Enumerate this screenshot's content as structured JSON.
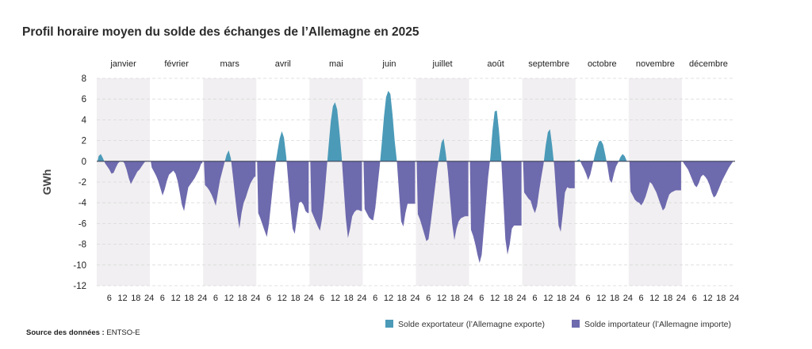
{
  "chart_data": {
    "type": "area",
    "title": "Profil horaire moyen du solde des échanges de l’Allemagne en 2025",
    "ylabel": "GWh",
    "ylim": [
      -12,
      8
    ],
    "yticks": [
      8,
      6,
      4,
      2,
      0,
      -2,
      -4,
      -6,
      -8,
      -10,
      -12
    ],
    "grid": true,
    "hour_ticks": [
      6,
      12,
      18,
      24
    ],
    "months": [
      "janvier",
      "février",
      "mars",
      "avril",
      "mai",
      "juin",
      "juillet",
      "août",
      "septembre",
      "octobre",
      "novembre",
      "décembre"
    ],
    "hourly_values": [
      [
        0.5,
        0.7,
        0.3,
        -0.2,
        -0.5,
        -0.8,
        -1.2,
        -1.1,
        -0.6,
        -0.2,
        0,
        0.05,
        -0.2,
        -0.8,
        -1.6,
        -2.2,
        -1.8,
        -1.4,
        -1.0,
        -0.8,
        -0.5,
        -0.2,
        0.05,
        0
      ],
      [
        -0.6,
        -1.0,
        -1.4,
        -1.9,
        -2.6,
        -3.3,
        -2.7,
        -1.9,
        -1.3,
        -1.1,
        -0.9,
        -1.2,
        -1.9,
        -3.0,
        -4.2,
        -4.8,
        -3.6,
        -2.5,
        -2.2,
        -1.9,
        -1.6,
        -1.2,
        -0.8,
        -0.2
      ],
      [
        -2.3,
        -2.5,
        -2.8,
        -3.2,
        -3.7,
        -4.3,
        -3.0,
        -1.8,
        -1.0,
        -0.2,
        0.6,
        1.05,
        0.3,
        -1.5,
        -3.4,
        -5.2,
        -6.5,
        -5.0,
        -4.0,
        -3.5,
        -2.8,
        -2.2,
        -1.8,
        -1.5
      ],
      [
        -5.0,
        -5.5,
        -6.1,
        -6.7,
        -7.3,
        -6.0,
        -4.0,
        -2.0,
        -0.3,
        1.0,
        2.2,
        2.9,
        2.3,
        0.5,
        -2.0,
        -4.5,
        -6.5,
        -7.0,
        -5.5,
        -4.0,
        -3.9,
        -4.2,
        -4.8,
        -5.0
      ],
      [
        -4.8,
        -5.3,
        -5.8,
        -6.3,
        -6.7,
        -5.5,
        -3.5,
        -1.0,
        1.5,
        3.8,
        5.3,
        5.7,
        5.0,
        3.0,
        0.6,
        -2.5,
        -5.5,
        -7.4,
        -6.5,
        -5.3,
        -4.9,
        -4.7,
        -4.7,
        -4.8
      ],
      [
        -4.6,
        -5.0,
        -5.4,
        -5.6,
        -5.7,
        -4.5,
        -2.5,
        -0.5,
        1.8,
        4.3,
        6.2,
        6.8,
        6.5,
        4.5,
        2.0,
        0.1,
        -3.0,
        -5.8,
        -6.3,
        -5.0,
        -4.1,
        -4.1,
        -4.1,
        -4.1
      ],
      [
        -5.1,
        -5.6,
        -6.3,
        -7.0,
        -7.7,
        -7.5,
        -6.0,
        -4.3,
        -2.5,
        -0.8,
        0.5,
        1.8,
        2.2,
        0.8,
        -1.0,
        -3.5,
        -6.0,
        -7.6,
        -6.5,
        -5.8,
        -5.5,
        -5.4,
        -5.3,
        -5.3
      ],
      [
        -6.6,
        -7.2,
        -8.0,
        -9.0,
        -9.8,
        -9.0,
        -6.5,
        -4.0,
        -1.5,
        0.3,
        3.0,
        4.8,
        4.9,
        3.0,
        0.5,
        -3.5,
        -7.5,
        -9.0,
        -8.0,
        -6.5,
        -6.2,
        -6.2,
        -6.2,
        -6.2
      ],
      [
        -3.0,
        -3.3,
        -3.6,
        -3.8,
        -4.5,
        -5.0,
        -4.3,
        -2.8,
        -1.5,
        -0.3,
        1.5,
        2.8,
        3.1,
        1.5,
        -0.5,
        -3.5,
        -6.2,
        -6.8,
        -5.0,
        -3.0,
        -2.5,
        -2.6,
        -2.6,
        -2.6
      ],
      [
        0.1,
        0.2,
        -0.3,
        -0.7,
        -1.2,
        -1.8,
        -1.3,
        -0.4,
        0.5,
        1.3,
        1.9,
        2.0,
        1.6,
        0.6,
        -0.5,
        -1.8,
        -2.1,
        -1.2,
        -0.5,
        -0.1,
        0.4,
        0.7,
        0.5,
        0
      ],
      [
        -2.9,
        -3.3,
        -3.7,
        -3.9,
        -4.0,
        -4.25,
        -3.9,
        -3.4,
        -2.7,
        -2.0,
        -2.2,
        -2.6,
        -3.0,
        -3.6,
        -4.2,
        -4.75,
        -4.5,
        -3.8,
        -3.2,
        -3.0,
        -2.9,
        -2.8,
        -2.8,
        -2.8
      ],
      [
        -0.2,
        -0.5,
        -0.8,
        -1.3,
        -1.8,
        -2.3,
        -2.5,
        -2.1,
        -1.5,
        -1.3,
        -1.5,
        -1.8,
        -2.3,
        -3.0,
        -3.5,
        -3.3,
        -2.8,
        -2.3,
        -1.8,
        -1.4,
        -1.0,
        -0.6,
        -0.3,
        0
      ]
    ],
    "series": [
      {
        "name": "Solde exportateur (l’Allemagne exporte)",
        "color": "#4b9ab8"
      },
      {
        "name": "Solde importateur (l’Allemagne importe)",
        "color": "#6e6aae"
      }
    ],
    "shaded_months_color": "#f1eff1",
    "legend_position": "bottom-right"
  },
  "source": {
    "label": "Source des données :",
    "value": "ENTSO-E"
  }
}
